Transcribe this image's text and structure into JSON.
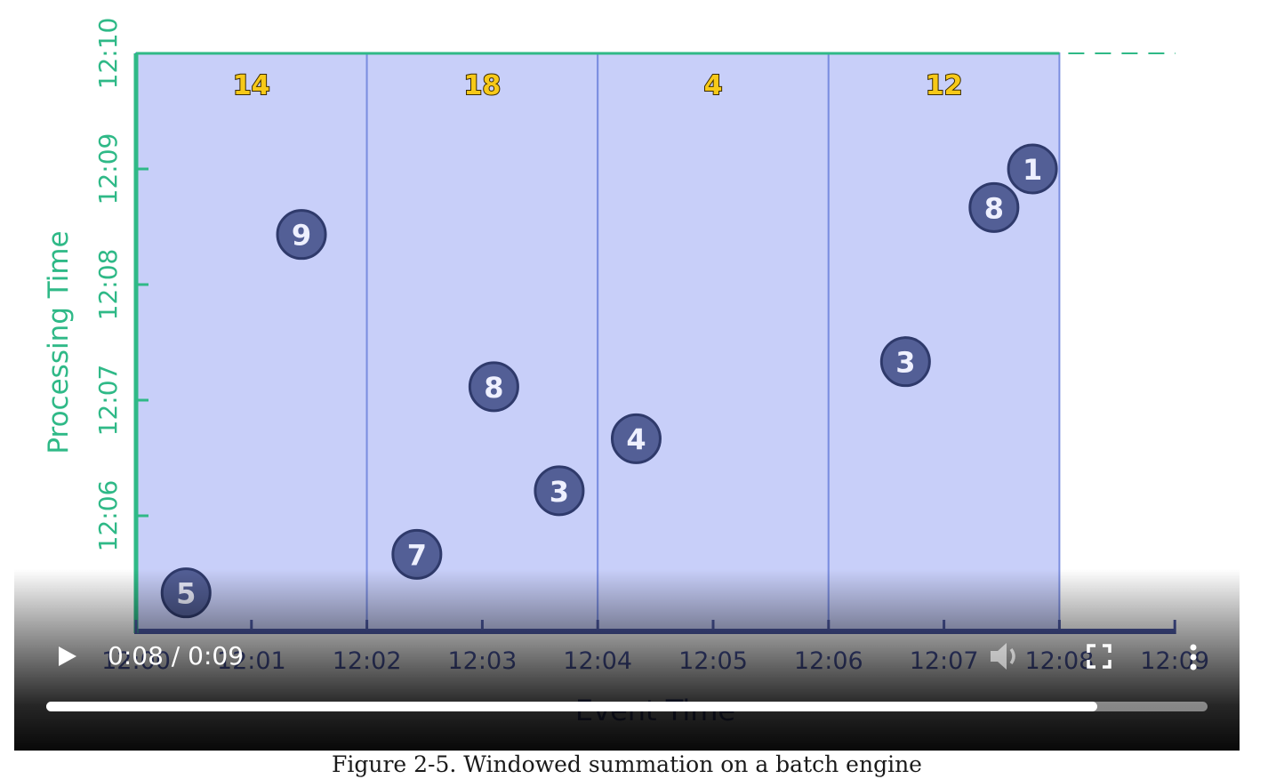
{
  "chart_data": {
    "type": "scatter",
    "xlabel": "Event Time",
    "ylabel": "Processing Time",
    "x_ticks": [
      "12:00",
      "12:01",
      "12:02",
      "12:03",
      "12:04",
      "12:05",
      "12:06",
      "12:07",
      "12:08",
      "12:09"
    ],
    "y_ticks": [
      "12:06",
      "12:07",
      "12:08",
      "12:09",
      "12:10"
    ],
    "xlim": [
      "12:00",
      "12:09"
    ],
    "ylim": [
      "12:05",
      "12:10"
    ],
    "windows": [
      {
        "start": "12:00",
        "end": "12:02",
        "sum": "14"
      },
      {
        "start": "12:02",
        "end": "12:04",
        "sum": "18"
      },
      {
        "start": "12:04",
        "end": "12:06",
        "sum": "4"
      },
      {
        "start": "12:06",
        "end": "12:08",
        "sum": "12"
      }
    ],
    "points": [
      {
        "event_time": "12:00:26",
        "processing_time": "12:05:20",
        "value": "5"
      },
      {
        "event_time": "12:01:26",
        "processing_time": "12:08:26",
        "value": "9"
      },
      {
        "event_time": "12:02:26",
        "processing_time": "12:05:40",
        "value": "7"
      },
      {
        "event_time": "12:03:06",
        "processing_time": "12:07:07",
        "value": "8"
      },
      {
        "event_time": "12:03:40",
        "processing_time": "12:06:13",
        "value": "3"
      },
      {
        "event_time": "12:04:20",
        "processing_time": "12:06:40",
        "value": "4"
      },
      {
        "event_time": "12:06:40",
        "processing_time": "12:07:20",
        "value": "3"
      },
      {
        "event_time": "12:07:26",
        "processing_time": "12:08:40",
        "value": "8"
      },
      {
        "event_time": "12:07:46",
        "processing_time": "12:09:00",
        "value": "1"
      }
    ],
    "colors": {
      "window_fill": "#c8cff9",
      "window_border": "#7b8ee0",
      "point_fill": "#535f96",
      "point_stroke": "#2f3a6b",
      "point_text": "#eef0ff",
      "axis_x": "#4d5aa6",
      "axis_y": "#2fb987",
      "sum_text": "#f7c918",
      "sum_stroke": "#3a2a00"
    }
  },
  "player": {
    "current_time": "0:08",
    "separator": "/",
    "duration": "0:09",
    "progress": 0.905,
    "play_icon": "play-icon",
    "volume_icon": "volume-icon",
    "fullscreen_icon": "fullscreen-icon",
    "more_icon": "more-vertical-icon"
  },
  "caption": "Figure 2-5. Windowed summation on a batch engine"
}
